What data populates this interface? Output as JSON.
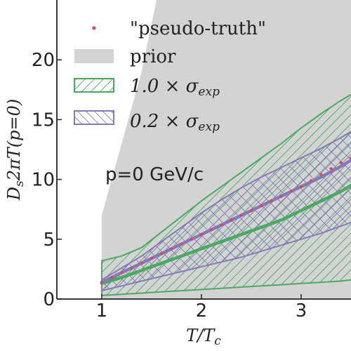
{
  "chart_data": {
    "type": "line",
    "title": "",
    "xlabel": "T/Tc",
    "ylabel": "Ds 2πT(p=0)",
    "xlim": [
      0.55,
      3.5
    ],
    "ylim": [
      0,
      25
    ],
    "xticks": [
      "1",
      "2",
      "3"
    ],
    "yticks": [
      "0",
      "5",
      "10",
      "15",
      "20"
    ],
    "annotation": "p=0 GeV/c",
    "legend_position": "upper-left",
    "legend": {
      "pseudo_truth": "\"pseudo-truth\"",
      "prior": "prior",
      "band_10": "1.0 × σexp",
      "band_02": "0.2 × σexp"
    },
    "colors": {
      "pseudo_truth": "#d04a68",
      "prior": "#d3d3d3",
      "band_10": "#4aaa62",
      "band_02": "#8878b8"
    },
    "pseudo_truth": {
      "x": [
        1.0,
        1.1,
        1.2,
        1.3,
        1.4,
        1.5,
        1.6,
        1.7,
        1.8,
        1.9,
        2.0,
        2.1,
        2.2,
        2.3,
        2.4,
        2.5,
        2.6,
        2.7,
        2.8,
        2.9,
        3.0,
        3.1,
        3.2,
        3.3,
        3.4,
        3.5
      ],
      "y": [
        1.4,
        1.8,
        2.2,
        2.6,
        3.0,
        3.4,
        3.8,
        4.2,
        4.6,
        5.0,
        5.4,
        5.8,
        6.2,
        6.6,
        7.0,
        7.4,
        7.8,
        8.2,
        8.6,
        9.0,
        9.4,
        9.9,
        10.4,
        10.9,
        11.4,
        11.8
      ]
    },
    "prior": {
      "x": [
        1.0,
        1.0,
        1.05,
        1.2,
        1.4,
        1.55,
        3.5,
        3.5
      ],
      "lower": [
        0,
        0,
        0,
        0,
        0,
        0,
        0,
        0
      ],
      "upper": [
        0,
        7.0,
        8.5,
        13.0,
        19.0,
        25.0,
        25.0,
        25.0
      ]
    },
    "band_10": {
      "x": [
        1.0,
        1.2,
        1.4,
        1.6,
        1.8,
        2.0,
        2.2,
        2.4,
        2.6,
        2.8,
        3.0,
        3.2,
        3.4,
        3.5
      ],
      "lower": [
        0.3,
        0.4,
        0.5,
        0.6,
        0.7,
        0.8,
        0.9,
        1.0,
        1.1,
        1.2,
        1.3,
        1.4,
        1.5,
        1.6
      ],
      "upper": [
        3.2,
        3.6,
        4.3,
        5.6,
        6.9,
        8.2,
        9.4,
        10.6,
        11.8,
        13.0,
        14.3,
        15.5,
        16.6,
        17.1
      ],
      "median": [
        1.3,
        1.8,
        2.4,
        3.0,
        3.6,
        4.2,
        4.8,
        5.4,
        6.0,
        6.6,
        7.4,
        8.2,
        9.0,
        9.5
      ]
    },
    "band_02": {
      "x": [
        1.0,
        1.2,
        1.4,
        1.6,
        1.8,
        2.0,
        2.2,
        2.4,
        2.6,
        2.8,
        3.0,
        3.2,
        3.4,
        3.5
      ],
      "lower": [
        0.7,
        1.1,
        1.5,
        1.9,
        2.3,
        2.7,
        3.1,
        3.5,
        4.0,
        4.5,
        5.0,
        5.5,
        6.1,
        6.4
      ],
      "upper": [
        1.6,
        2.6,
        3.6,
        4.8,
        6.0,
        7.2,
        8.3,
        9.3,
        10.2,
        11.0,
        11.8,
        12.6,
        13.5,
        14.0
      ],
      "median": [
        1.4,
        2.2,
        3.0,
        3.8,
        4.6,
        5.4,
        6.2,
        7.0,
        7.8,
        8.6,
        9.4,
        10.2,
        11.1,
        11.6
      ]
    }
  }
}
